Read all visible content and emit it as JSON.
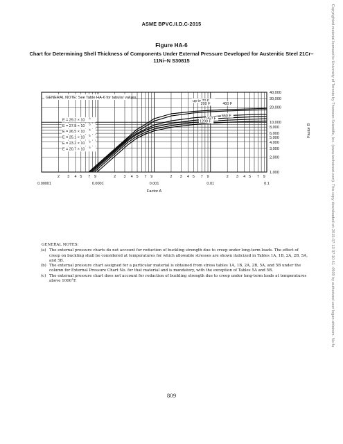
{
  "running_head": "ASME BPVC.II.D.C-2015",
  "figure": {
    "number": "Figure HA-6",
    "title": "Chart for Determining Shell Thickness of Components Under External Pressure Developed for Austenitic Steel 21Cr–11Ni–N S30815"
  },
  "chart_data": {
    "type": "line",
    "general_note": "GENERAL NOTE: See Table HA-6 for tabular values.",
    "xlabel": "Factor A",
    "ylabel": "Factor B",
    "x_scale": "log",
    "y_scale": "log",
    "xlim": [
      1e-05,
      0.1
    ],
    "ylim": [
      1000,
      40000
    ],
    "grid": true,
    "x_decade_labels": [
      {
        "value": 1e-05,
        "label": "0.00001"
      },
      {
        "value": 0.0001,
        "label": "0.0001"
      },
      {
        "value": 0.001,
        "label": "0.001"
      },
      {
        "value": 0.01,
        "label": "0.01"
      },
      {
        "value": 0.1,
        "label": "0.1"
      }
    ],
    "x_minor_labels": [
      "2",
      "3",
      "4",
      "5",
      "7",
      "9"
    ],
    "y_tick_labels": [
      {
        "value": 40000,
        "label": "40,000"
      },
      {
        "value": 30000,
        "label": "30,000"
      },
      {
        "value": 20000,
        "label": "20,000"
      },
      {
        "value": 10000,
        "label": "10,000"
      },
      {
        "value": 8000,
        "label": "8,000"
      },
      {
        "value": 6000,
        "label": "6,000"
      },
      {
        "value": 5000,
        "label": "5,000"
      },
      {
        "value": 4000,
        "label": "4,000"
      },
      {
        "value": 3000,
        "label": "3,000"
      },
      {
        "value": 2000,
        "label": "2,000"
      },
      {
        "value": 1000,
        "label": "1,000"
      }
    ],
    "modulus_labels": [
      {
        "label": "E = 29.2 × 10",
        "exp": "6"
      },
      {
        "label": "E = 27.8 × 10",
        "exp": "6"
      },
      {
        "label": "E = 26.5 × 10",
        "exp": "6"
      },
      {
        "label": "E = 25.1 × 10",
        "exp": "6"
      },
      {
        "label": "E = 23.2 × 10",
        "exp": "6"
      },
      {
        "label": "E = 20.7 × 10",
        "exp": "6"
      }
    ],
    "series": [
      {
        "name": "up to 70 F",
        "x": [
          6.85e-05,
          0.00034,
          0.00048,
          0.0007,
          0.001,
          0.002,
          0.005,
          0.01,
          0.02,
          0.05,
          0.1
        ],
        "y": [
          1000,
          4960,
          7000,
          9100,
          11800,
          14800,
          16500,
          17400,
          18000,
          18600,
          19000
        ]
      },
      {
        "name": "200 F",
        "x": [
          7.19e-05,
          0.00034,
          0.00048,
          0.0007,
          0.001,
          0.002,
          0.005,
          0.01,
          0.02,
          0.05,
          0.1
        ],
        "y": [
          1000,
          4730,
          6400,
          8200,
          10600,
          13400,
          15400,
          16300,
          16900,
          17500,
          17800
        ]
      },
      {
        "name": "400 F",
        "x": [
          7.55e-05,
          0.00034,
          0.00048,
          0.0007,
          0.001,
          0.002,
          0.005,
          0.01,
          0.02,
          0.05,
          0.1
        ],
        "y": [
          1000,
          4500,
          5900,
          7300,
          8800,
          10700,
          12300,
          13000,
          13600,
          14200,
          14500
        ]
      },
      {
        "name": "650 F",
        "x": [
          7.98e-05,
          0.00034,
          0.00048,
          0.0007,
          0.001,
          0.002,
          0.005,
          0.01,
          0.02,
          0.05,
          0.1
        ],
        "y": [
          1000,
          4260,
          5600,
          6900,
          8000,
          9500,
          10900,
          11600,
          12200,
          12800,
          13100
        ]
      },
      {
        "name": "950 F",
        "x": [
          8.63e-05,
          0.00034,
          0.00048,
          0.0007,
          0.001,
          0.002,
          0.005,
          0.01,
          0.02,
          0.05,
          0.1
        ],
        "y": [
          1000,
          3940,
          5100,
          6300,
          7300,
          8600,
          9900,
          10500,
          11000,
          11500,
          11800
        ]
      },
      {
        "name": "1200 F",
        "x": [
          9.66e-05,
          0.00034,
          0.00048,
          0.0007,
          0.001,
          0.002,
          0.005,
          0.01,
          0.02,
          0.05,
          0.1
        ],
        "y": [
          1000,
          3520,
          4700,
          5800,
          6700,
          7900,
          9000,
          9600,
          10000,
          10400,
          10600
        ]
      }
    ]
  },
  "notes": {
    "heading": "GENERAL NOTES:",
    "items": [
      {
        "label": "(a)",
        "text": "The external pressure charts do not account for reduction of buckling strength due to creep under long-term loads. The effect of creep on buckling shall be considered at temperatures for which allowable stresses are shown italicized in Tables 1A, 1B, 2A, 2B, 5A, and 5B."
      },
      {
        "label": "(b)",
        "text": "The external pressure chart assigned for a particular material is obtained from stress tables 1A, 1B, 2A, 2B, 5A, and 5B under the column for External Pressure Chart No. for that material and is mandatory, with the exception of Tables 5A and 5B."
      },
      {
        "label": "(c)",
        "text": "The external pressure chart does not account for reduction of buckling strength due to creep under long-term loads at temperatures above 1000°F."
      }
    ]
  },
  "page_number": "809",
  "side_note": "Copyrighted material licensed to University of Toronto by Thomson Scientific, Inc. (www.techstreet.com). This copy downloaded on 2015-07-13 07:10:51 -0500 by authorized user logan ahlstrom. No fu"
}
